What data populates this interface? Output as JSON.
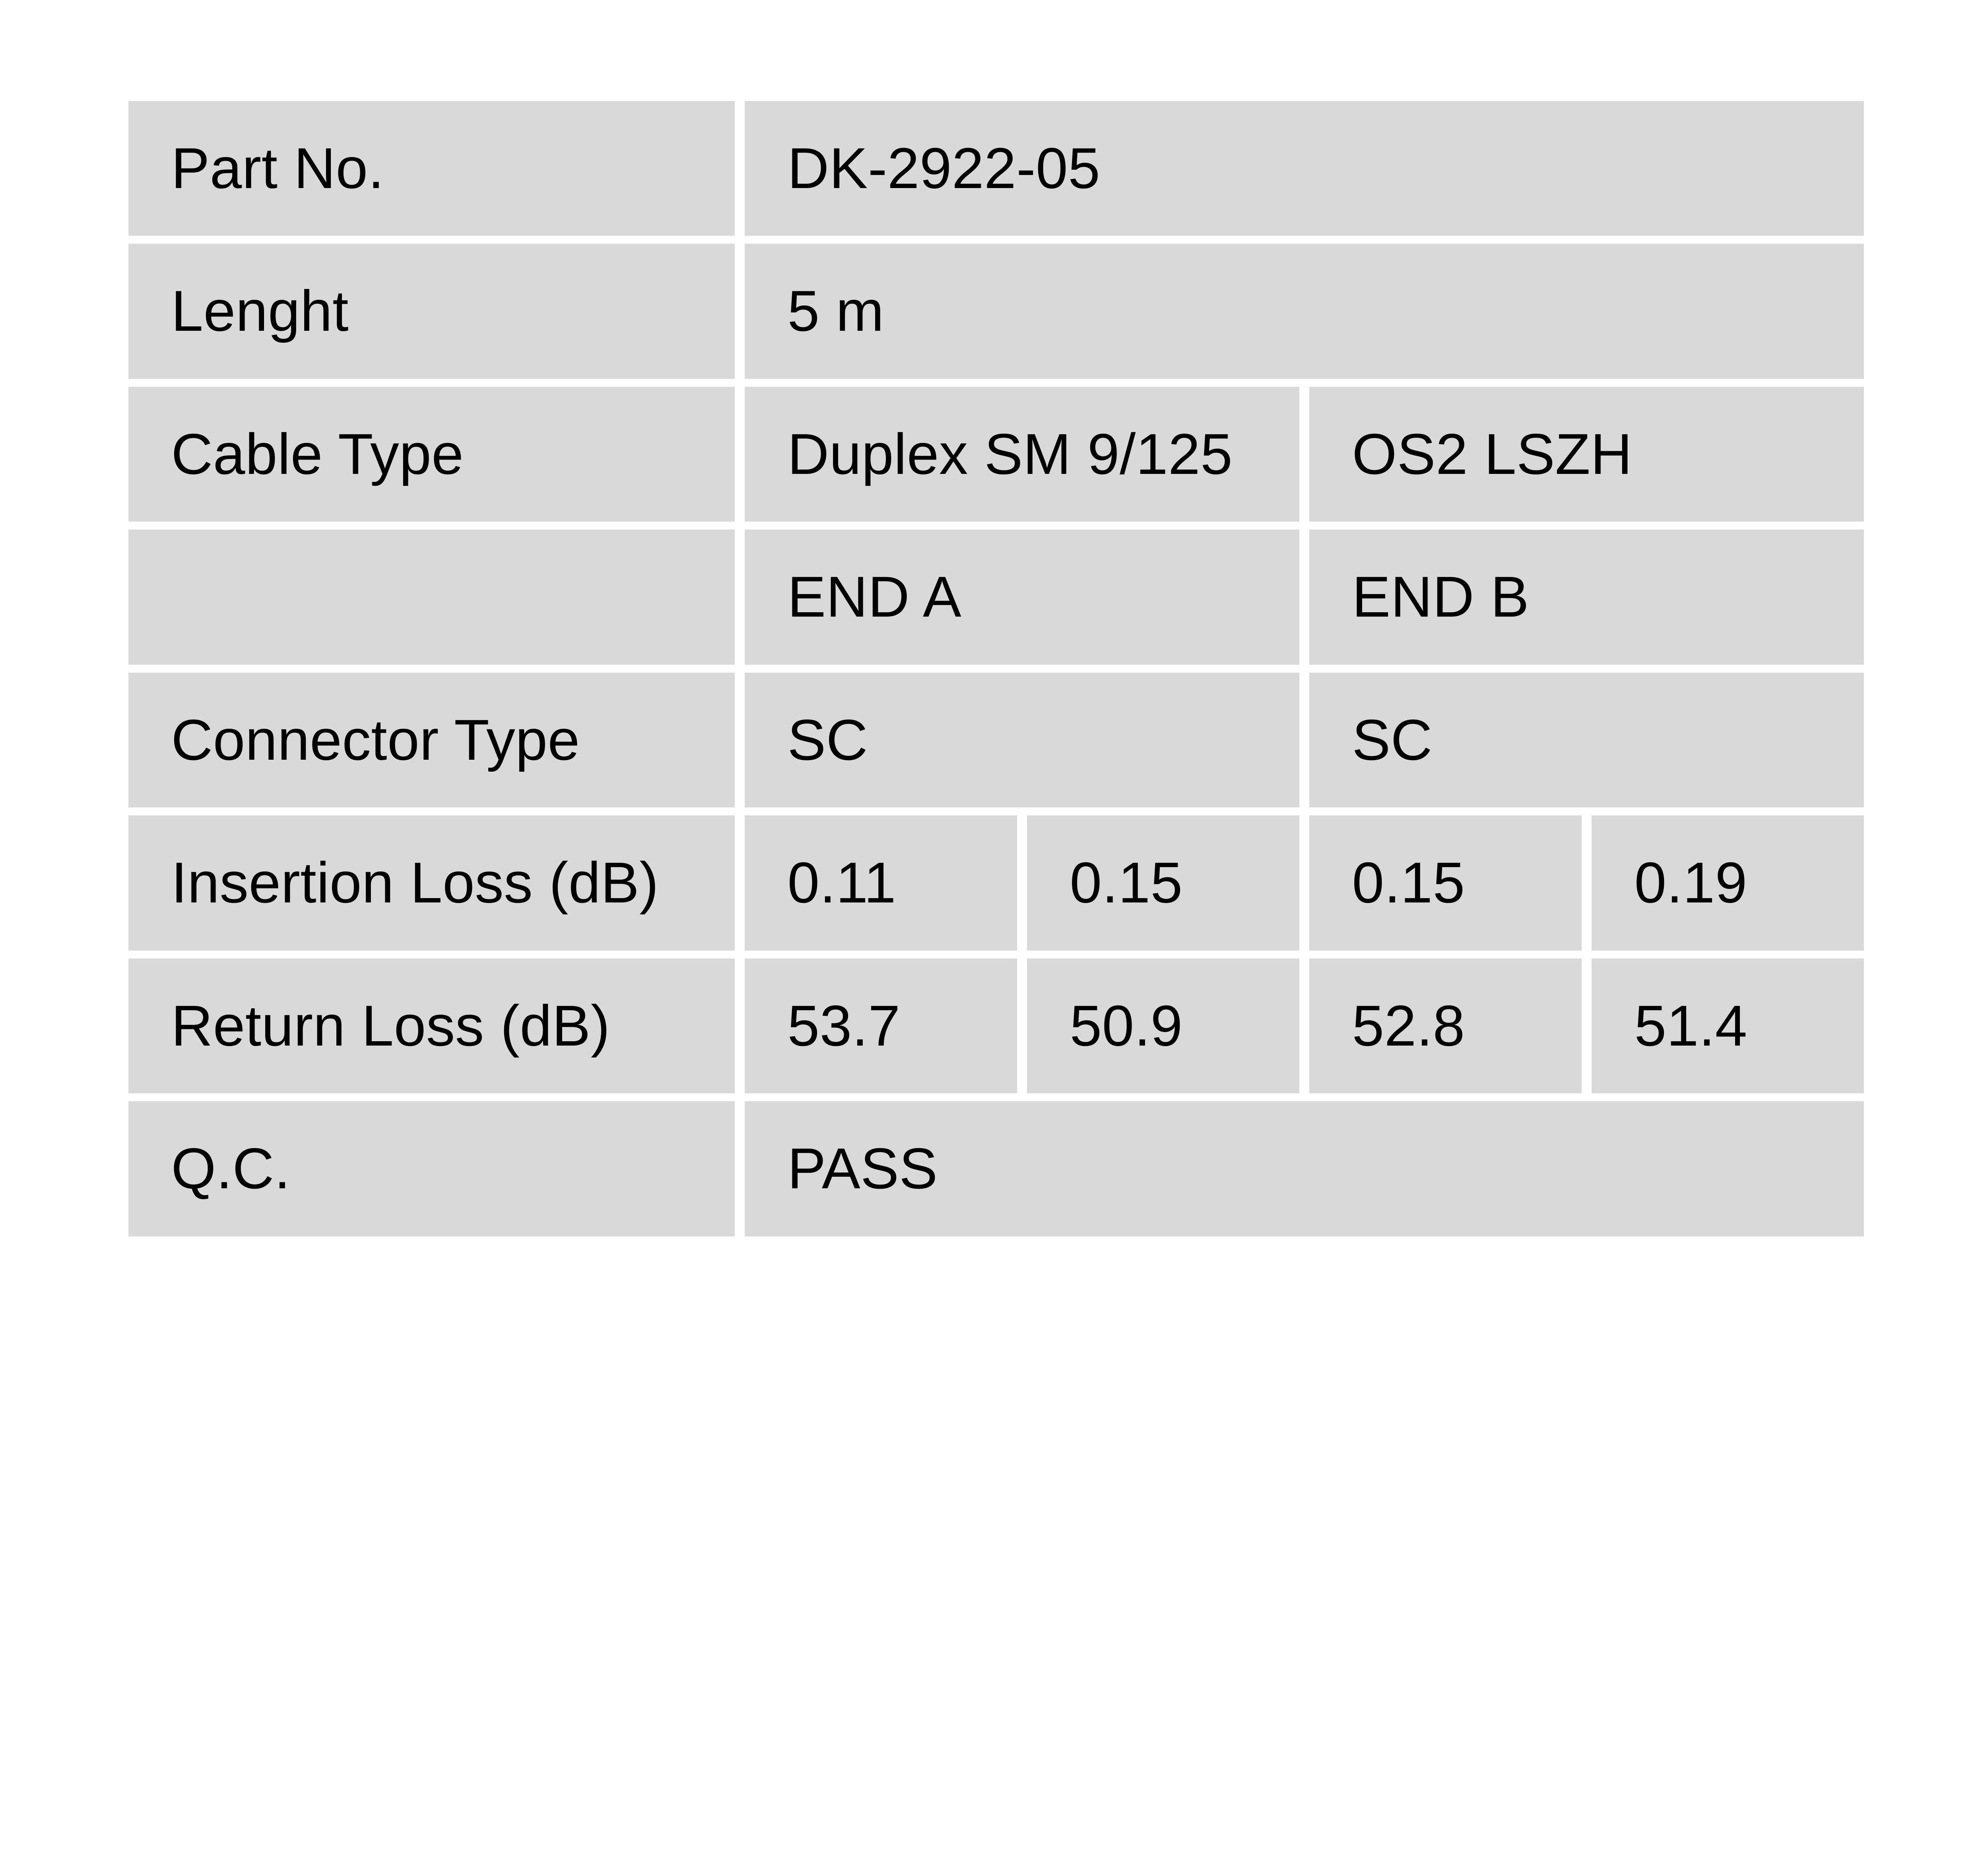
{
  "page": {
    "background": "#ffffff"
  },
  "table": {
    "colors": {
      "cell_bg": "#d9d9d9",
      "text": "#000000",
      "gap": "#ffffff"
    },
    "rows": [
      {
        "label": "Part No.",
        "values": [
          {
            "text": "DK-2922-05",
            "span": 4
          }
        ]
      },
      {
        "label": "Lenght",
        "values": [
          {
            "text": "5 m",
            "span": 4
          }
        ]
      },
      {
        "label": "Cable Type",
        "values": [
          {
            "text": "Duplex SM 9/125",
            "span": 2
          },
          {
            "text": "OS2 LSZH",
            "span": 2
          }
        ]
      },
      {
        "label": "",
        "values": [
          {
            "text": "END A",
            "span": 2
          },
          {
            "text": "END B",
            "span": 2
          }
        ]
      },
      {
        "label": "Connector Type",
        "values": [
          {
            "text": "SC",
            "span": 2
          },
          {
            "text": "SC",
            "span": 2
          }
        ]
      },
      {
        "label": "Insertion Loss (dB)",
        "values": [
          {
            "text": "0.11",
            "span": 1
          },
          {
            "text": "0.15",
            "span": 1
          },
          {
            "text": "0.15",
            "span": 1
          },
          {
            "text": "0.19",
            "span": 1
          }
        ]
      },
      {
        "label": "Return Loss (dB)",
        "values": [
          {
            "text": "53.7",
            "span": 1
          },
          {
            "text": "50.9",
            "span": 1
          },
          {
            "text": "52.8",
            "span": 1
          },
          {
            "text": "51.4",
            "span": 1
          }
        ]
      },
      {
        "label": "Q.C.",
        "values": [
          {
            "text": "PASS",
            "span": 4
          }
        ]
      }
    ]
  }
}
